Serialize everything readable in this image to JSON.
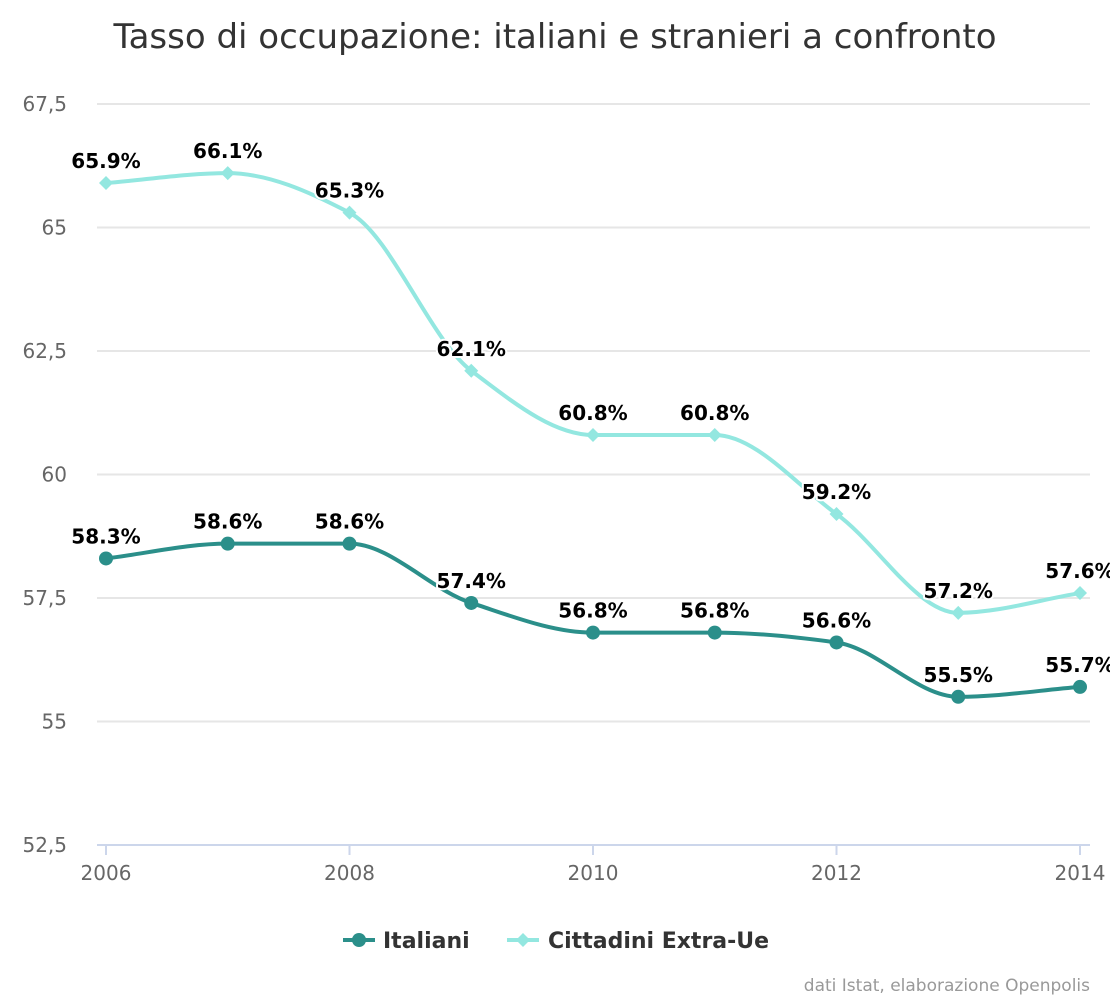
{
  "chart_data": {
    "type": "line",
    "title": "Tasso di occupazione: italiani e stranieri a confronto",
    "xlabel": "",
    "ylabel": "",
    "x": [
      2006,
      2007,
      2008,
      2009,
      2010,
      2011,
      2012,
      2013,
      2014
    ],
    "x_tick_labels": [
      "2006",
      "2008",
      "2010",
      "2012",
      "2014"
    ],
    "x_tick_values": [
      2006,
      2008,
      2010,
      2012,
      2014
    ],
    "y_tick_labels": [
      "52,5",
      "55",
      "57,5",
      "60",
      "62,5",
      "65",
      "67,5"
    ],
    "y_tick_values": [
      52.5,
      55,
      57.5,
      60,
      62.5,
      65,
      67.5
    ],
    "ylim": [
      52.5,
      67.5
    ],
    "grid": true,
    "legend_position": "bottom-center",
    "series": [
      {
        "name": "Italiani",
        "color": "#2b8f8a",
        "marker": "circle",
        "values": [
          58.3,
          58.6,
          58.6,
          57.4,
          56.8,
          56.8,
          56.6,
          55.5,
          55.7
        ],
        "labels": [
          "58.3%",
          "58.6%",
          "58.6%",
          "57.4%",
          "56.8%",
          "56.8%",
          "56.6%",
          "55.5%",
          "55.7%"
        ]
      },
      {
        "name": "Cittadini Extra-Ue",
        "color": "#93e7e0",
        "marker": "diamond",
        "values": [
          65.9,
          66.1,
          65.3,
          62.1,
          60.8,
          60.8,
          59.2,
          57.2,
          57.6
        ],
        "labels": [
          "65.9%",
          "66.1%",
          "65.3%",
          "62.1%",
          "60.8%",
          "60.8%",
          "59.2%",
          "57.2%",
          "57.6%"
        ]
      }
    ],
    "credits": "dati Istat, elaborazione Openpolis"
  }
}
